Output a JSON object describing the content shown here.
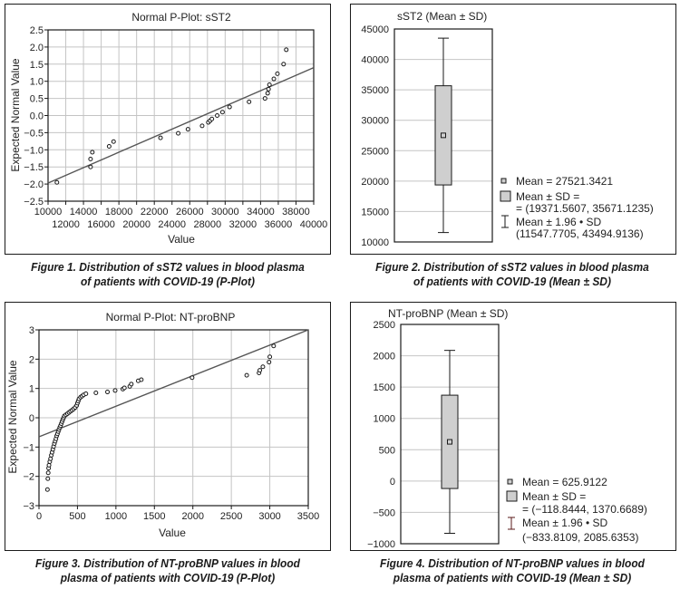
{
  "chart_data": [
    {
      "type": "scatter",
      "title": "Normal P-Plot: sST2",
      "xlabel": "Value",
      "ylabel": "Expected Normal Value",
      "xlim": [
        10000,
        40000
      ],
      "ylim": [
        -2.5,
        2.5
      ],
      "x_ticks_upper": [
        "10000",
        "14000",
        "18000",
        "22000",
        "26000",
        "30000",
        "34000",
        "38000"
      ],
      "x_ticks_lower": [
        "12000",
        "16000",
        "20000",
        "24000",
        "28000",
        "32000",
        "36000",
        "40000"
      ],
      "y_ticks": [
        "2.5",
        "2.0",
        "1.5",
        "1.0",
        "0.5",
        "0.0",
        "−0.5",
        "−1.0",
        "−1.5",
        "−2.0",
        "−2.5"
      ],
      "grid": true,
      "points": [
        [
          11000,
          -1.95
        ],
        [
          14800,
          -1.5
        ],
        [
          14800,
          -1.27
        ],
        [
          15000,
          -1.07
        ],
        [
          16900,
          -0.9
        ],
        [
          17400,
          -0.76
        ],
        [
          22700,
          -0.65
        ],
        [
          24700,
          -0.52
        ],
        [
          25800,
          -0.4
        ],
        [
          27400,
          -0.3
        ],
        [
          28100,
          -0.2
        ],
        [
          28300,
          -0.15
        ],
        [
          28500,
          -0.1
        ],
        [
          29100,
          0.0
        ],
        [
          29700,
          0.1
        ],
        [
          30500,
          0.25
        ],
        [
          32700,
          0.4
        ],
        [
          34500,
          0.5
        ],
        [
          34800,
          0.65
        ],
        [
          34900,
          0.77
        ],
        [
          35000,
          0.9
        ],
        [
          35500,
          1.07
        ],
        [
          35900,
          1.22
        ],
        [
          36600,
          1.5
        ],
        [
          36900,
          1.92
        ]
      ],
      "reference_line": [
        [
          10000,
          -1.97
        ],
        [
          40000,
          1.4
        ]
      ],
      "caption": [
        "Figure 1.  Distribution of sST2 values in blood plasma",
        "of patients with COVID-19 (P-Plot)"
      ]
    },
    {
      "type": "box",
      "title": "sST2 (Mean ± SD)",
      "ylim": [
        10000,
        45000
      ],
      "y_ticks": [
        "45000",
        "40000",
        "35000",
        "30000",
        "25000",
        "20000",
        "15000",
        "10000"
      ],
      "mean": 27521.3421,
      "sd_range": [
        19371.5607,
        35671.1235
      ],
      "ci196_range": [
        11547.7705,
        43494.9136
      ],
      "legend": {
        "mean": "Mean = 27521.3421",
        "sd_line1": "Mean ± SD =",
        "sd_line2": "= (19371.5607, 35671.1235)",
        "ci_line1": "Mean ± 1.96 • SD",
        "ci_line2": "(11547.7705, 43494.9136)"
      },
      "legend_position": "bottom-right",
      "caption": [
        "Figure 2.  Distribution of sST2 values in blood plasma",
        "of patients with COVID-19 (Mean ± SD)"
      ]
    },
    {
      "type": "scatter",
      "title": "Normal P-Plot: NT-proBNP",
      "xlabel": "Value",
      "ylabel": "Expected Normal Value",
      "xlim": [
        0,
        3500
      ],
      "ylim": [
        -3,
        3
      ],
      "x_ticks": [
        "0",
        "500",
        "1000",
        "1500",
        "2000",
        "2500",
        "3000",
        "3500"
      ],
      "y_ticks": [
        "3",
        "2",
        "1",
        "0",
        "−1",
        "−2",
        "−3"
      ],
      "grid": true,
      "points": [
        [
          110,
          -2.45
        ],
        [
          115,
          -2.08
        ],
        [
          120,
          -1.88
        ],
        [
          125,
          -1.72
        ],
        [
          130,
          -1.62
        ],
        [
          140,
          -1.5
        ],
        [
          150,
          -1.4
        ],
        [
          160,
          -1.28
        ],
        [
          170,
          -1.18
        ],
        [
          180,
          -1.08
        ],
        [
          190,
          -0.98
        ],
        [
          200,
          -0.88
        ],
        [
          210,
          -0.8
        ],
        [
          220,
          -0.72
        ],
        [
          230,
          -0.62
        ],
        [
          240,
          -0.55
        ],
        [
          250,
          -0.47
        ],
        [
          260,
          -0.4
        ],
        [
          270,
          -0.33
        ],
        [
          280,
          -0.27
        ],
        [
          290,
          -0.2
        ],
        [
          300,
          -0.13
        ],
        [
          310,
          -0.06
        ],
        [
          320,
          0.0
        ],
        [
          330,
          0.06
        ],
        [
          350,
          0.1
        ],
        [
          370,
          0.14
        ],
        [
          390,
          0.18
        ],
        [
          410,
          0.22
        ],
        [
          430,
          0.26
        ],
        [
          450,
          0.3
        ],
        [
          470,
          0.35
        ],
        [
          490,
          0.42
        ],
        [
          500,
          0.5
        ],
        [
          510,
          0.57
        ],
        [
          520,
          0.64
        ],
        [
          540,
          0.7
        ],
        [
          560,
          0.74
        ],
        [
          580,
          0.78
        ],
        [
          610,
          0.82
        ],
        [
          740,
          0.85
        ],
        [
          890,
          0.88
        ],
        [
          990,
          0.93
        ],
        [
          1090,
          0.98
        ],
        [
          1110,
          1.02
        ],
        [
          1180,
          1.07
        ],
        [
          1200,
          1.15
        ],
        [
          1290,
          1.26
        ],
        [
          1330,
          1.3
        ],
        [
          1990,
          1.37
        ],
        [
          2700,
          1.45
        ],
        [
          2860,
          1.53
        ],
        [
          2870,
          1.62
        ],
        [
          2910,
          1.74
        ],
        [
          2990,
          1.9
        ],
        [
          3000,
          2.08
        ],
        [
          3050,
          2.45
        ]
      ],
      "reference_line": [
        [
          0,
          -0.65
        ],
        [
          3500,
          3.0
        ]
      ],
      "caption": [
        "Figure 3.  Distribution of NT-proBNP values in blood",
        "plasma of patients with COVID-19 (P-Plot)"
      ]
    },
    {
      "type": "box",
      "title": "NT-proBNP (Mean ± SD)",
      "ylim": [
        -1000,
        2500
      ],
      "y_ticks": [
        "2500",
        "2000",
        "1500",
        "1000",
        "500",
        "0",
        "−500",
        "−1000"
      ],
      "mean": 625.9122,
      "sd_range": [
        -118.8444,
        1370.6689
      ],
      "ci196_range": [
        -833.8109,
        2085.6353
      ],
      "legend": {
        "mean": "Mean = 625.9122",
        "sd_line1": "Mean ± SD =",
        "sd_line2": "= (−118.8444, 1370.6689)",
        "ci_line1": "Mean ± 1.96 • SD",
        "ci_line2": "(−833.8109, 2085.6353)"
      },
      "legend_position": "bottom-right",
      "caption": [
        "Figure 4.  Distribution of NT-proBNP values in blood",
        "plasma of patients with COVID-19 (Mean ± SD)"
      ]
    }
  ],
  "colors": {
    "box_fill": "#cfcfcf",
    "grid": "#c4c4c4",
    "ink": "#1a1a1a",
    "line": "#555555"
  }
}
